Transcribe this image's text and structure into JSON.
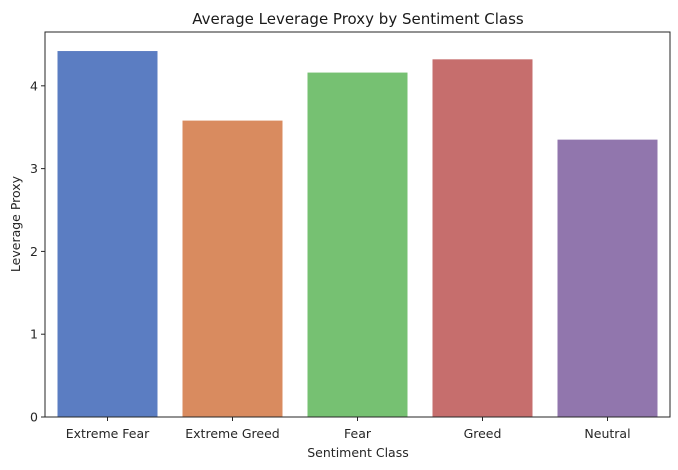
{
  "chart_data": {
    "type": "bar",
    "title": "Average Leverage Proxy by Sentiment Class",
    "xlabel": "Sentiment Class",
    "ylabel": "Leverage Proxy",
    "categories": [
      "Extreme Fear",
      "Extreme Greed",
      "Fear",
      "Greed",
      "Neutral"
    ],
    "values": [
      4.42,
      3.58,
      4.16,
      4.32,
      3.35
    ],
    "colors": [
      "#5b7dc2",
      "#d98b5f",
      "#76c172",
      "#c66e6d",
      "#9176ad"
    ],
    "ylim": [
      0,
      4.65
    ],
    "yticks": [
      0,
      1,
      2,
      3,
      4
    ],
    "grid": false,
    "legend": "none"
  }
}
